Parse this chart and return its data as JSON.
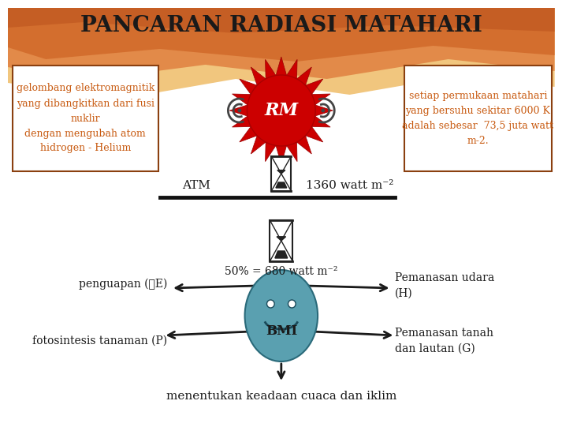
{
  "title": "PANCARAN RADIASI MATAHARI",
  "title_fontsize": 20,
  "title_color": "#1a1a1a",
  "bg_color": "#ffffff",
  "left_box_text": "gelombang elektromagnitik\nyang dibangkitkan dari fusi\nnuklir\ndengan mengubah atom\nhidrogen - Helium",
  "left_box_color": "#c85a10",
  "right_box_text": "setiap permukaan matahari\nyang bersuhu sekitar 6000 K\nadalah sebesar  73,5 juta watt\nm-2.",
  "right_box_color": "#c85a10",
  "rm_label": "RM",
  "sun_color": "#cc0000",
  "atm_label": "ATM",
  "watt_label": "1360 watt m⁻²",
  "mid_label": "50% = 680 watt m⁻²",
  "bmi_label": "BMI",
  "bmi_color": "#5aa0b0",
  "arrow_color": "#1a1a1a",
  "left_top_arrow": "penguapan (☕E)",
  "left_bot_arrow": "fotosintesis tanaman (P)",
  "right_top_arrow": "Pemanasan udara\n(H)",
  "right_bot_arrow": "Pemanasan tanah\ndan lautan (G)",
  "bottom_label": "menentukan keadaan cuaca dan iklim",
  "wave_colors": [
    "#e8b060",
    "#d4783a",
    "#c86030",
    "#e09050"
  ],
  "hourglass_color": "#222222"
}
